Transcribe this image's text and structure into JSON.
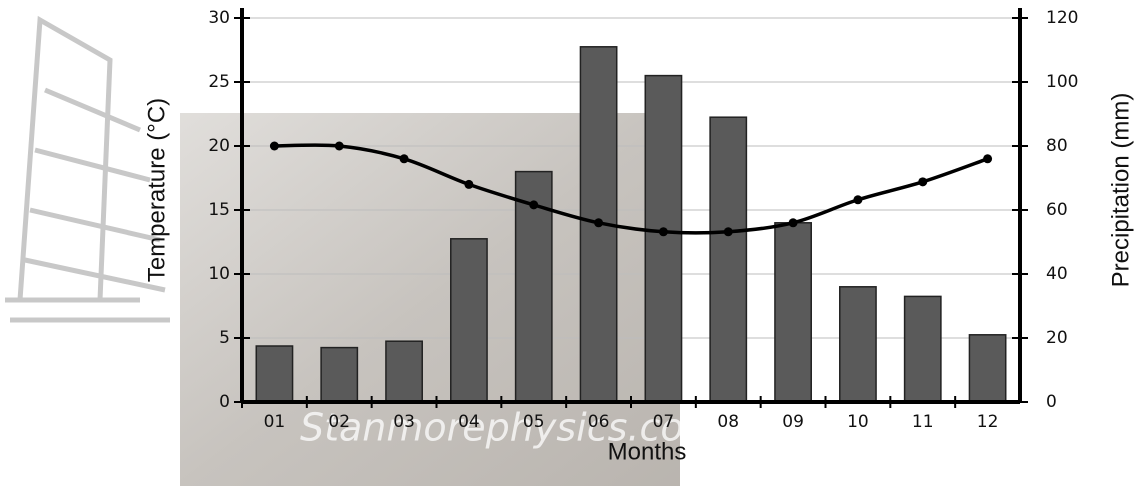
{
  "chart_data": {
    "type": "bar",
    "categories": [
      "01",
      "02",
      "03",
      "04",
      "05",
      "06",
      "07",
      "08",
      "09",
      "10",
      "11",
      "12"
    ],
    "x_label": "Months",
    "y_label": "Temperature (°C)",
    "y2_label": "Precipitation (mm)",
    "watermark": "Stanmorephysics.com",
    "series": [
      {
        "name": "Precipitation",
        "type": "bar",
        "axis": "y2",
        "color": "#5a5a5a",
        "values": [
          17.5,
          17,
          19,
          51,
          72,
          111,
          102,
          89,
          56,
          36,
          33,
          21
        ]
      },
      {
        "name": "Temperature",
        "type": "line",
        "color": "#000000",
        "values": [
          20,
          20,
          19,
          17,
          15.4,
          14,
          13.3,
          13.3,
          14,
          15.8,
          17.2,
          19
        ]
      }
    ],
    "ylim": [
      0,
      30
    ],
    "yticks": [
      0,
      5,
      10,
      15,
      20,
      25,
      30
    ],
    "y2lim": [
      0,
      120
    ],
    "y2ticks": [
      0,
      20,
      40,
      60,
      80,
      100,
      120
    ],
    "grid": true
  }
}
